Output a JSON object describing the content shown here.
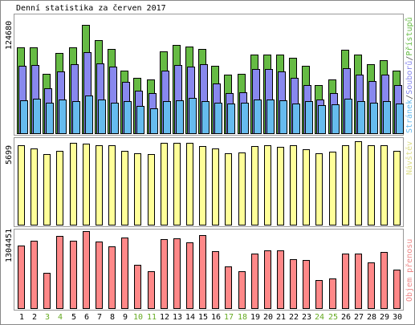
{
  "title": "Denní statistika za červen 2017",
  "chart_data": [
    {
      "type": "bar",
      "ylabel": "124680",
      "x": [
        "1",
        "2",
        "3",
        "4",
        "5",
        "6",
        "7",
        "8",
        "9",
        "10",
        "11",
        "12",
        "13",
        "14",
        "15",
        "16",
        "17",
        "18",
        "19",
        "20",
        "21",
        "22",
        "23",
        "24",
        "25",
        "26",
        "27",
        "28",
        "29",
        "30"
      ],
      "series": [
        {
          "name": "Přístupů",
          "color": "#66bb44",
          "values": [
            92000,
            92000,
            64000,
            86000,
            92000,
            116000,
            100000,
            90000,
            67000,
            59000,
            58000,
            88000,
            95000,
            93000,
            90000,
            72000,
            63000,
            64000,
            84000,
            84000,
            84000,
            81000,
            72000,
            52000,
            58000,
            89000,
            84000,
            74000,
            78000,
            67000
          ]
        },
        {
          "name": "Souborů",
          "color": "#8888ee",
          "values": [
            72000,
            73000,
            48000,
            66000,
            74000,
            87000,
            75000,
            71000,
            55000,
            46000,
            43000,
            67000,
            73000,
            71000,
            74000,
            53000,
            43000,
            44000,
            69000,
            69000,
            66000,
            59000,
            52000,
            36000,
            43000,
            70000,
            63000,
            56000,
            63000,
            52000
          ]
        },
        {
          "name": "Stránek",
          "color": "#66bbee",
          "values": [
            35000,
            37000,
            33000,
            36000,
            34000,
            40000,
            36000,
            33000,
            34000,
            29000,
            27000,
            34000,
            35000,
            38000,
            34000,
            33000,
            32000,
            33000,
            36000,
            36000,
            35000,
            32000,
            34000,
            30000,
            31000,
            37000,
            34000,
            33000,
            34000,
            32000
          ]
        }
      ]
    },
    {
      "type": "bar",
      "ylabel": "5699",
      "x": [
        "1",
        "2",
        "3",
        "4",
        "5",
        "6",
        "7",
        "8",
        "9",
        "10",
        "11",
        "12",
        "13",
        "14",
        "15",
        "16",
        "17",
        "18",
        "19",
        "20",
        "21",
        "22",
        "23",
        "24",
        "25",
        "26",
        "27",
        "28",
        "29",
        "30"
      ],
      "series": [
        {
          "name": "Návštěv",
          "color": "#ffff99",
          "values": [
            5300,
            5100,
            4750,
            4950,
            5500,
            5450,
            5300,
            5300,
            4950,
            4800,
            4750,
            5500,
            5500,
            5500,
            5250,
            5100,
            4800,
            4850,
            5250,
            5300,
            5200,
            5300,
            5050,
            4800,
            4900,
            5300,
            5600,
            5300,
            5300,
            4950
          ]
        }
      ]
    },
    {
      "type": "bar",
      "ylabel": "1304451",
      "x": [
        "1",
        "2",
        "3",
        "4",
        "5",
        "6",
        "7",
        "8",
        "9",
        "10",
        "11",
        "12",
        "13",
        "14",
        "15",
        "16",
        "17",
        "18",
        "19",
        "20",
        "21",
        "22",
        "23",
        "24",
        "25",
        "26",
        "27",
        "28",
        "29",
        "30"
      ],
      "series": [
        {
          "name": "Objem přenosu",
          "color": "#ff8888",
          "values": [
            1060000,
            1140000,
            600000,
            1220000,
            1140000,
            1300000,
            1130000,
            1040000,
            1200000,
            730000,
            630000,
            1170000,
            1180000,
            1110000,
            1230000,
            960000,
            710000,
            620000,
            930000,
            980000,
            980000,
            830000,
            810000,
            470000,
            500000,
            930000,
            920000,
            770000,
            950000,
            650000
          ]
        }
      ]
    }
  ],
  "legend_colors": {
    "stranek": "#66bbee",
    "souboru": "#8888ee",
    "pristupu": "#66bb44",
    "separator": "#555555",
    "navstev": "#dddd88",
    "objem": "#ee8888"
  },
  "x_label_colors": {
    "weekday": "#000000",
    "weekend": "#66aa22"
  },
  "weekend_days": [
    "3",
    "4",
    "10",
    "11",
    "17",
    "18",
    "24",
    "25"
  ]
}
